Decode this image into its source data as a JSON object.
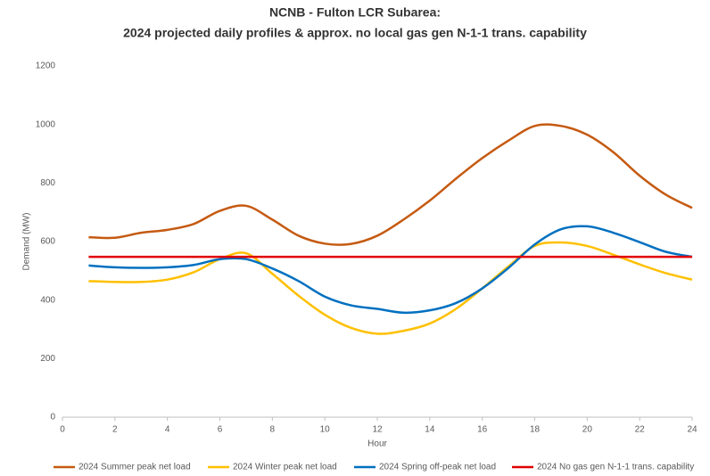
{
  "chart_data": {
    "type": "line",
    "title": "NCNB - Fulton LCR Subarea:",
    "subtitle": "2024 projected daily profiles & approx. no local gas gen N-1-1 trans. capability",
    "x_label": "Hour",
    "y_label": "Demand (MW)",
    "x": [
      1,
      2,
      3,
      4,
      5,
      6,
      7,
      8,
      9,
      10,
      11,
      12,
      13,
      14,
      15,
      16,
      17,
      18,
      19,
      20,
      21,
      22,
      23,
      24
    ],
    "series": [
      {
        "name": "2024 Summer peak net load",
        "color": "#c55a11",
        "values": [
          615,
          613,
          630,
          640,
          660,
          705,
          722,
          675,
          620,
          593,
          592,
          620,
          675,
          740,
          815,
          885,
          945,
          995,
          995,
          965,
          905,
          825,
          760,
          715
        ]
      },
      {
        "name": "2024 Winter peak net load",
        "color": "#ffc000",
        "values": [
          465,
          462,
          462,
          470,
          495,
          540,
          560,
          490,
          415,
          350,
          305,
          285,
          295,
          320,
          370,
          440,
          515,
          585,
          597,
          585,
          555,
          522,
          492,
          470
        ]
      },
      {
        "name": "2024 Spring off-peak net load",
        "color": "#0070c0",
        "values": [
          518,
          512,
          510,
          512,
          520,
          540,
          540,
          508,
          465,
          412,
          382,
          370,
          357,
          365,
          390,
          440,
          510,
          590,
          642,
          652,
          630,
          598,
          565,
          548
        ]
      },
      {
        "name": "2024 No gas gen N-1-1 trans. capability",
        "color": "#e00000",
        "values": [
          548,
          548,
          548,
          548,
          548,
          548,
          548,
          548,
          548,
          548,
          548,
          548,
          548,
          548,
          548,
          548,
          548,
          548,
          548,
          548,
          548,
          548,
          548,
          548
        ]
      }
    ],
    "xlim": [
      0,
      24
    ],
    "xticks": [
      0,
      2,
      4,
      6,
      8,
      10,
      12,
      14,
      16,
      18,
      20,
      22,
      24
    ],
    "ylim": [
      0,
      1200
    ],
    "yticks": [
      0,
      200,
      400,
      600,
      800,
      1000,
      1200
    ],
    "grid": false,
    "legend": "bottom"
  }
}
